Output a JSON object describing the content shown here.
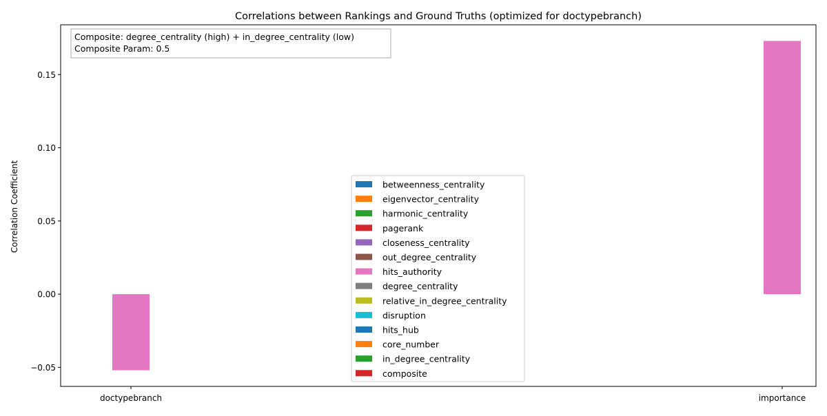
{
  "chart_data": {
    "type": "bar",
    "title": "Correlations between Rankings and Ground Truths (optimized for doctypebranch)",
    "xlabel": "",
    "ylabel": "Correlation Coefficient",
    "categories": [
      "doctypebranch",
      "importance"
    ],
    "ylim": [
      -0.063,
      0.184
    ],
    "yticks": [
      -0.05,
      0.0,
      0.05,
      0.1,
      0.15
    ],
    "ytick_labels": [
      "−0.05",
      "0.00",
      "0.05",
      "0.10",
      "0.15"
    ],
    "grid": false,
    "legend_position": "lower center",
    "annotation": {
      "lines": [
        "Composite: degree_centrality (high) + in_degree_centrality (low)",
        "Composite Param: 0.5"
      ],
      "position": "top-left"
    },
    "series": [
      {
        "name": "betweenness_centrality",
        "color": "#1f77b4",
        "values": [
          null,
          null
        ]
      },
      {
        "name": "eigenvector_centrality",
        "color": "#ff7f0e",
        "values": [
          null,
          null
        ]
      },
      {
        "name": "harmonic_centrality",
        "color": "#2ca02c",
        "values": [
          null,
          null
        ]
      },
      {
        "name": "pagerank",
        "color": "#d62728",
        "values": [
          null,
          null
        ]
      },
      {
        "name": "closeness_centrality",
        "color": "#9467bd",
        "values": [
          null,
          null
        ]
      },
      {
        "name": "out_degree_centrality",
        "color": "#8c564b",
        "values": [
          null,
          null
        ]
      },
      {
        "name": "hits_authority",
        "color": "#e377c2",
        "values": [
          -0.052,
          0.173
        ]
      },
      {
        "name": "degree_centrality",
        "color": "#7f7f7f",
        "values": [
          null,
          null
        ]
      },
      {
        "name": "relative_in_degree_centrality",
        "color": "#bcbd22",
        "values": [
          null,
          null
        ]
      },
      {
        "name": "disruption",
        "color": "#17becf",
        "values": [
          null,
          null
        ]
      },
      {
        "name": "hits_hub",
        "color": "#1f77b4",
        "values": [
          null,
          null
        ]
      },
      {
        "name": "core_number",
        "color": "#ff7f0e",
        "values": [
          null,
          null
        ]
      },
      {
        "name": "in_degree_centrality",
        "color": "#2ca02c",
        "values": [
          null,
          null
        ]
      },
      {
        "name": "composite",
        "color": "#d62728",
        "values": [
          null,
          null
        ]
      }
    ]
  }
}
